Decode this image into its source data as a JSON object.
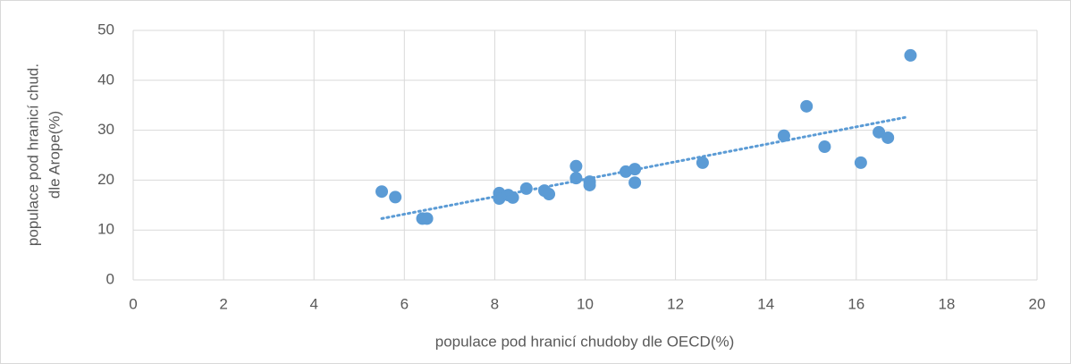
{
  "chart_data": {
    "type": "scatter",
    "xlabel": "populace pod hranicí chudoby dle OECD(%)",
    "ylabel": [
      "populace pod hranicí chud.",
      "dle Arope(%)"
    ],
    "x": [
      5.5,
      5.8,
      6.4,
      6.5,
      8.1,
      8.1,
      8.3,
      8.4,
      8.7,
      9.1,
      9.2,
      9.8,
      9.8,
      10.1,
      10.1,
      10.9,
      11.1,
      11.1,
      12.6,
      14.4,
      14.9,
      15.3,
      16.1,
      16.5,
      16.7,
      17.2
    ],
    "values": [
      17.7,
      16.6,
      12.3,
      12.3,
      17.4,
      16.3,
      17.0,
      16.5,
      18.3,
      17.9,
      17.2,
      22.8,
      20.4,
      19.7,
      19.0,
      21.7,
      22.2,
      19.5,
      23.5,
      28.9,
      34.8,
      26.7,
      23.5,
      29.6,
      28.5,
      45.0
    ],
    "color": "#5b9bd5",
    "trendline": {
      "x": [
        5.5,
        17.1
      ],
      "y": [
        12.3,
        32.6
      ]
    },
    "xlim": [
      0,
      20
    ],
    "xticks": [
      0,
      2,
      4,
      6,
      8,
      10,
      12,
      14,
      16,
      18,
      20
    ],
    "ylim": [
      0,
      50
    ],
    "yticks": [
      0,
      10,
      20,
      30,
      40,
      50
    ],
    "grid": true
  }
}
